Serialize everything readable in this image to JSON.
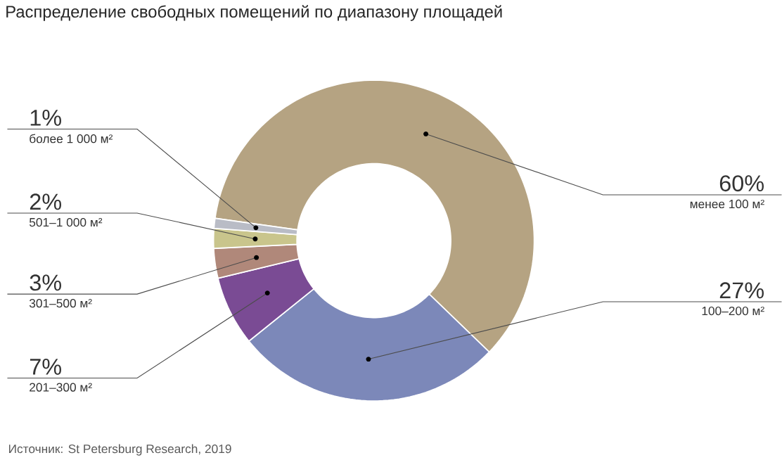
{
  "chart_data": {
    "type": "donut",
    "title": "Распределение свободных помещений по диапазону площадей",
    "categories": [
      "менее 100 м²",
      "100–200 м²",
      "201–300 м²",
      "301–500 м²",
      "501–1 000 м²",
      "более 1 000 м²"
    ],
    "values": [
      60,
      27,
      7,
      3,
      2,
      1
    ],
    "value_labels": [
      "60%",
      "27%",
      "7%",
      "3%",
      "2%",
      "1%"
    ],
    "colors": [
      "#b5a382",
      "#7c88b9",
      "#7a4b94",
      "#b0887a",
      "#c9c58c",
      "#b9bcc6"
    ],
    "annotations": [
      "Источник: St Petersburg Research, 2019"
    ]
  }
}
